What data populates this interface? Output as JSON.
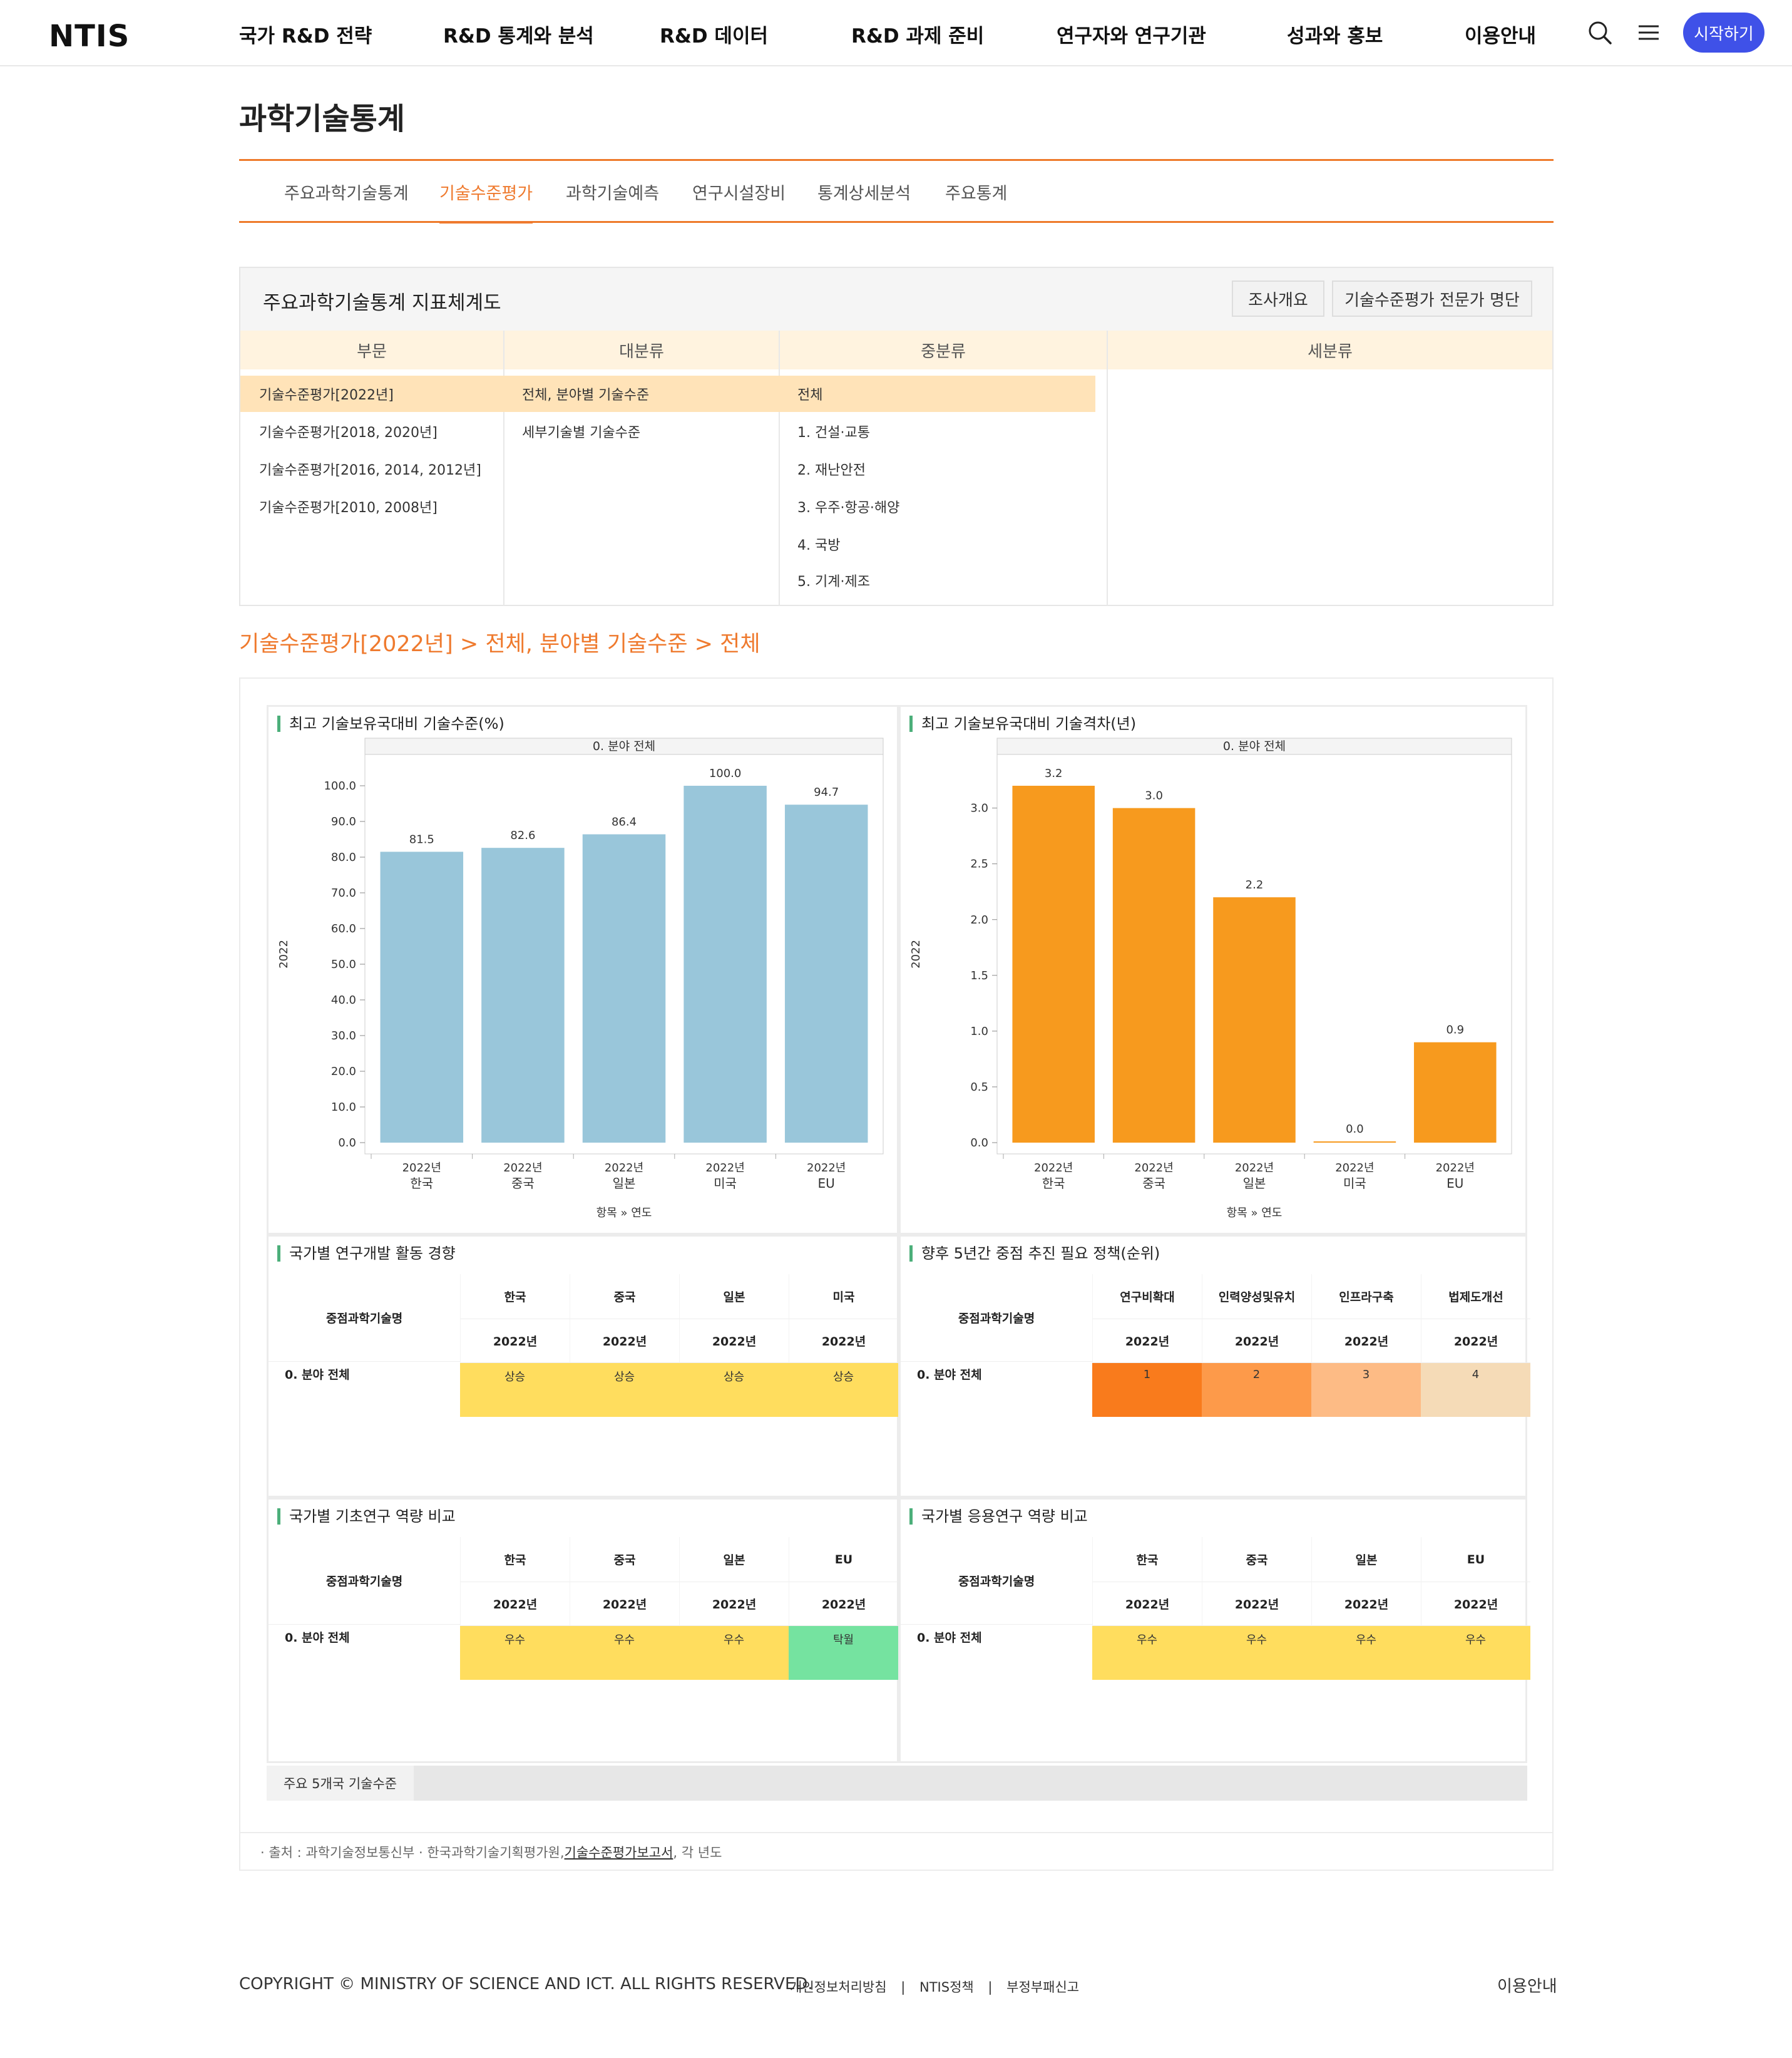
{
  "header": {
    "logo": "NTIS",
    "menu": [
      "국가 R&D 전략",
      "R&D 통계와 분석",
      "R&D 데이터",
      "R&D 과제 준비",
      "연구자와 연구기관",
      "성과와 홍보",
      "이용안내"
    ],
    "search_icon": "search-icon",
    "menu_icon": "hamburger-icon",
    "start_label": "시작하기",
    "accent": "#3f51e8"
  },
  "page_title": "과학기술통계",
  "subnav": {
    "items": [
      "주요과학기술통계",
      "기술수준평가",
      "과학기술예측",
      "연구시설장비",
      "통계상세분석",
      "주요통계"
    ],
    "active": "기술수준평가",
    "accent": "#ef7a2e"
  },
  "selector": {
    "title": "주요과학기술통계 지표체계도",
    "buttons": [
      "조사개요",
      "기술수준평가 전문가 명단"
    ],
    "columns": [
      "부문",
      "대분류",
      "중분류",
      "세분류"
    ],
    "col1": [
      "기술수준평가[2022년]",
      "기술수준평가[2018, 2020년]",
      "기술수준평가[2016, 2014, 2012년]",
      "기술수준평가[2010, 2008년]"
    ],
    "col2": [
      "전체, 분야별 기술수준",
      "세부기술별 기술수준"
    ],
    "col3": [
      "전체",
      "1. 건설·교통",
      "2. 재난안전",
      "3. 우주·항공·해양",
      "4. 국방",
      "5. 기계·제조"
    ]
  },
  "breadcrumb": "기술수준평가[2022년] > 전체, 분야별 기술수준 > 전체",
  "charts": {
    "level": {
      "title": "최고 기술보유국대비 기술수준(%)",
      "facet": "0. 분야 전체",
      "ylabel": "2022",
      "xlabel": "항목 » 연도",
      "year": "2022년",
      "categories": [
        "한국",
        "중국",
        "일본",
        "미국",
        "EU"
      ],
      "values": [
        81.5,
        82.6,
        86.4,
        100.0,
        94.7
      ],
      "value_labels": [
        "81.5",
        "82.6",
        "86.4",
        "100.0",
        "94.7"
      ],
      "ticks": [
        "0.0",
        "10.0",
        "20.0",
        "30.0",
        "40.0",
        "50.0",
        "60.0",
        "70.0",
        "80.0",
        "90.0",
        "100.0"
      ],
      "ylim": [
        0,
        100
      ],
      "color": "#99c6da"
    },
    "gap": {
      "title": "최고 기술보유국대비 기술격차(년)",
      "facet": "0. 분야 전체",
      "ylabel": "2022",
      "xlabel": "항목 » 연도",
      "year": "2022년",
      "categories": [
        "한국",
        "중국",
        "일본",
        "미국",
        "EU"
      ],
      "values": [
        3.2,
        3.0,
        2.2,
        0.0,
        0.9
      ],
      "value_labels": [
        "3.2",
        "3.0",
        "2.2",
        "0.0",
        "0.9"
      ],
      "ticks": [
        "0.0",
        "0.5",
        "1.0",
        "1.5",
        "2.0",
        "2.5",
        "3.0"
      ],
      "ylim": [
        0,
        3.2
      ],
      "color": "#f79a1e"
    }
  },
  "chart_data": [
    {
      "type": "bar",
      "title": "최고 기술보유국대비 기술수준(%)",
      "categories": [
        "한국",
        "중국",
        "일본",
        "미국",
        "EU"
      ],
      "values": [
        81.5,
        82.6,
        86.4,
        100.0,
        94.7
      ],
      "xlabel": "항목 » 연도",
      "ylabel": "2022",
      "ylim": [
        0,
        100
      ],
      "grid": false
    },
    {
      "type": "bar",
      "title": "최고 기술보유국대비 기술격차(년)",
      "categories": [
        "한국",
        "중국",
        "일본",
        "미국",
        "EU"
      ],
      "values": [
        3.2,
        3.0,
        2.2,
        0.0,
        0.9
      ],
      "xlabel": "항목 » 연도",
      "ylabel": "2022",
      "ylim": [
        0,
        3.2
      ],
      "grid": false
    }
  ],
  "tables": {
    "trend": {
      "title": "국가별 연구개발 활동 경향",
      "row_header": "중점과학기술명",
      "columns": [
        "한국",
        "중국",
        "일본",
        "미국"
      ],
      "year": "2022년",
      "row_label": "0. 분야 전체",
      "values": [
        "상승",
        "상승",
        "상승",
        "상승"
      ],
      "colors": [
        "#ffdd5e",
        "#ffdd5e",
        "#ffdd5e",
        "#ffdd5e"
      ]
    },
    "policy": {
      "title": "향후 5년간 중점 추진 필요 정책(순위)",
      "row_header": "중점과학기술명",
      "columns": [
        "연구비확대",
        "인력양성및유치",
        "인프라구축",
        "법제도개선"
      ],
      "year": "2022년",
      "row_label": "0. 분야 전체",
      "values": [
        "1",
        "2",
        "3",
        "4"
      ],
      "colors": [
        "#f97b1c",
        "#fd9a4a",
        "#fdbb85",
        "#f5dbb7"
      ]
    },
    "basic": {
      "title": "국가별 기초연구 역량 비교",
      "row_header": "중점과학기술명",
      "columns": [
        "한국",
        "중국",
        "일본",
        "EU"
      ],
      "year": "2022년",
      "row_label": "0. 분야 전체",
      "values": [
        "우수",
        "우수",
        "우수",
        "탁월"
      ],
      "colors": [
        "#ffdd5e",
        "#ffdd5e",
        "#ffdd5e",
        "#75e3a0"
      ]
    },
    "applied": {
      "title": "국가별 응용연구 역량 비교",
      "row_header": "중점과학기술명",
      "columns": [
        "한국",
        "중국",
        "일본",
        "EU"
      ],
      "year": "2022년",
      "row_label": "0. 분야 전체",
      "values": [
        "우수",
        "우수",
        "우수",
        "우수"
      ],
      "colors": [
        "#ffdd5e",
        "#ffdd5e",
        "#ffdd5e",
        "#ffdd5e"
      ]
    }
  },
  "tab_label": "주요 5개국 기술수준",
  "source": {
    "prefix": "· 출처 : 과학기술정보통신부 · 한국과학기술기획평가원, ",
    "link": "기술수준평가보고서",
    "suffix": ", 각 년도"
  },
  "footer": {
    "copyright": "COPYRIGHT © MINISTRY OF SCIENCE AND ICT. ALL RIGHTS RESERVED.",
    "links": [
      "개인정보처리방침",
      "NTIS정책",
      "부정부패신고"
    ],
    "separator": "|",
    "right": "이용안내"
  }
}
